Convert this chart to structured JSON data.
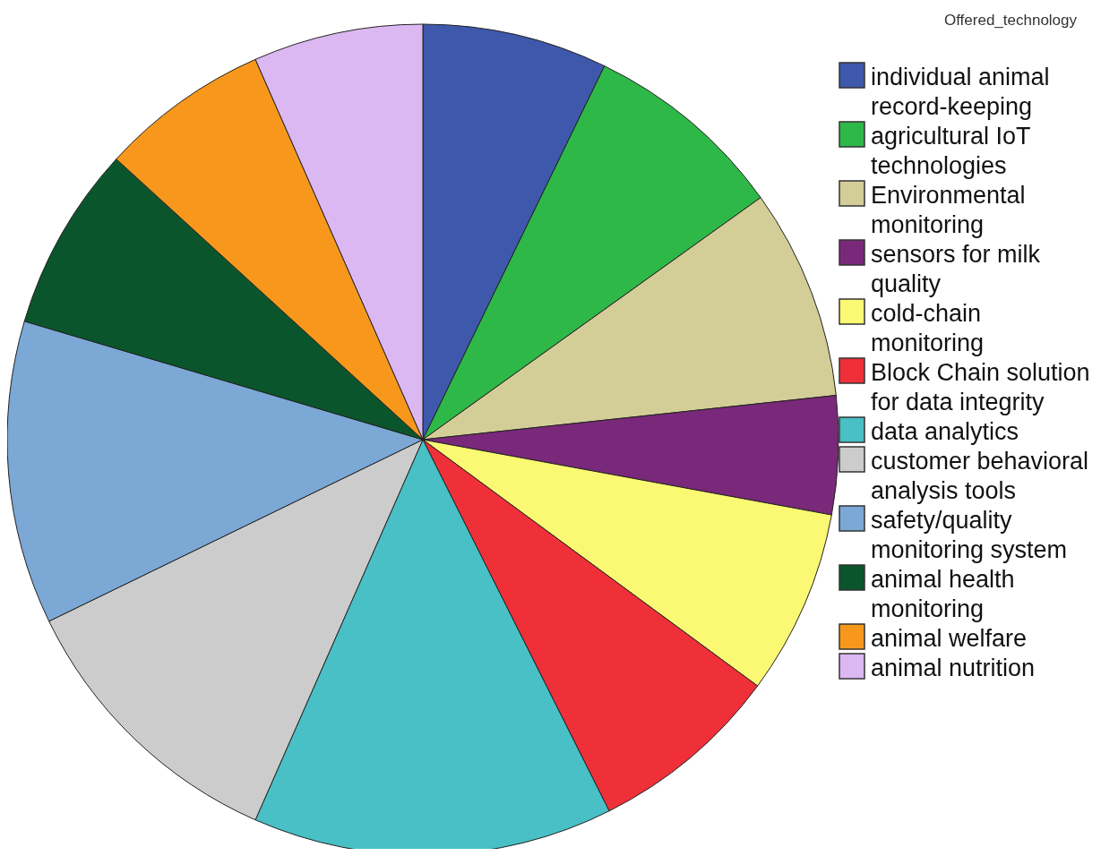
{
  "chart_data": {
    "type": "pie",
    "legend_title": "Offered_technology",
    "legend": "right",
    "categories": [
      "individual animal record-keeping",
      "agricultural IoT technologies",
      "Environmental monitoring",
      "sensors for milk quality",
      "cold-chain monitoring",
      "Block Chain solution for data integrity",
      "data analytics",
      "customer behavioral analysis tools",
      "safety/quality monitoring system",
      "animal health monitoring",
      "animal welfare",
      "animal nutrition"
    ],
    "values": [
      7.2,
      7.9,
      8.2,
      4.6,
      7.2,
      7.5,
      14.0,
      11.2,
      11.8,
      7.2,
      6.6,
      6.6
    ],
    "colors": [
      "#3e58ac",
      "#2eb848",
      "#d3ce97",
      "#7a287a",
      "#fbf873",
      "#ef3038",
      "#48c0c5",
      "#cccccc",
      "#7ba8d5",
      "#0b552d",
      "#f7981d",
      "#dcb8f2"
    ]
  }
}
